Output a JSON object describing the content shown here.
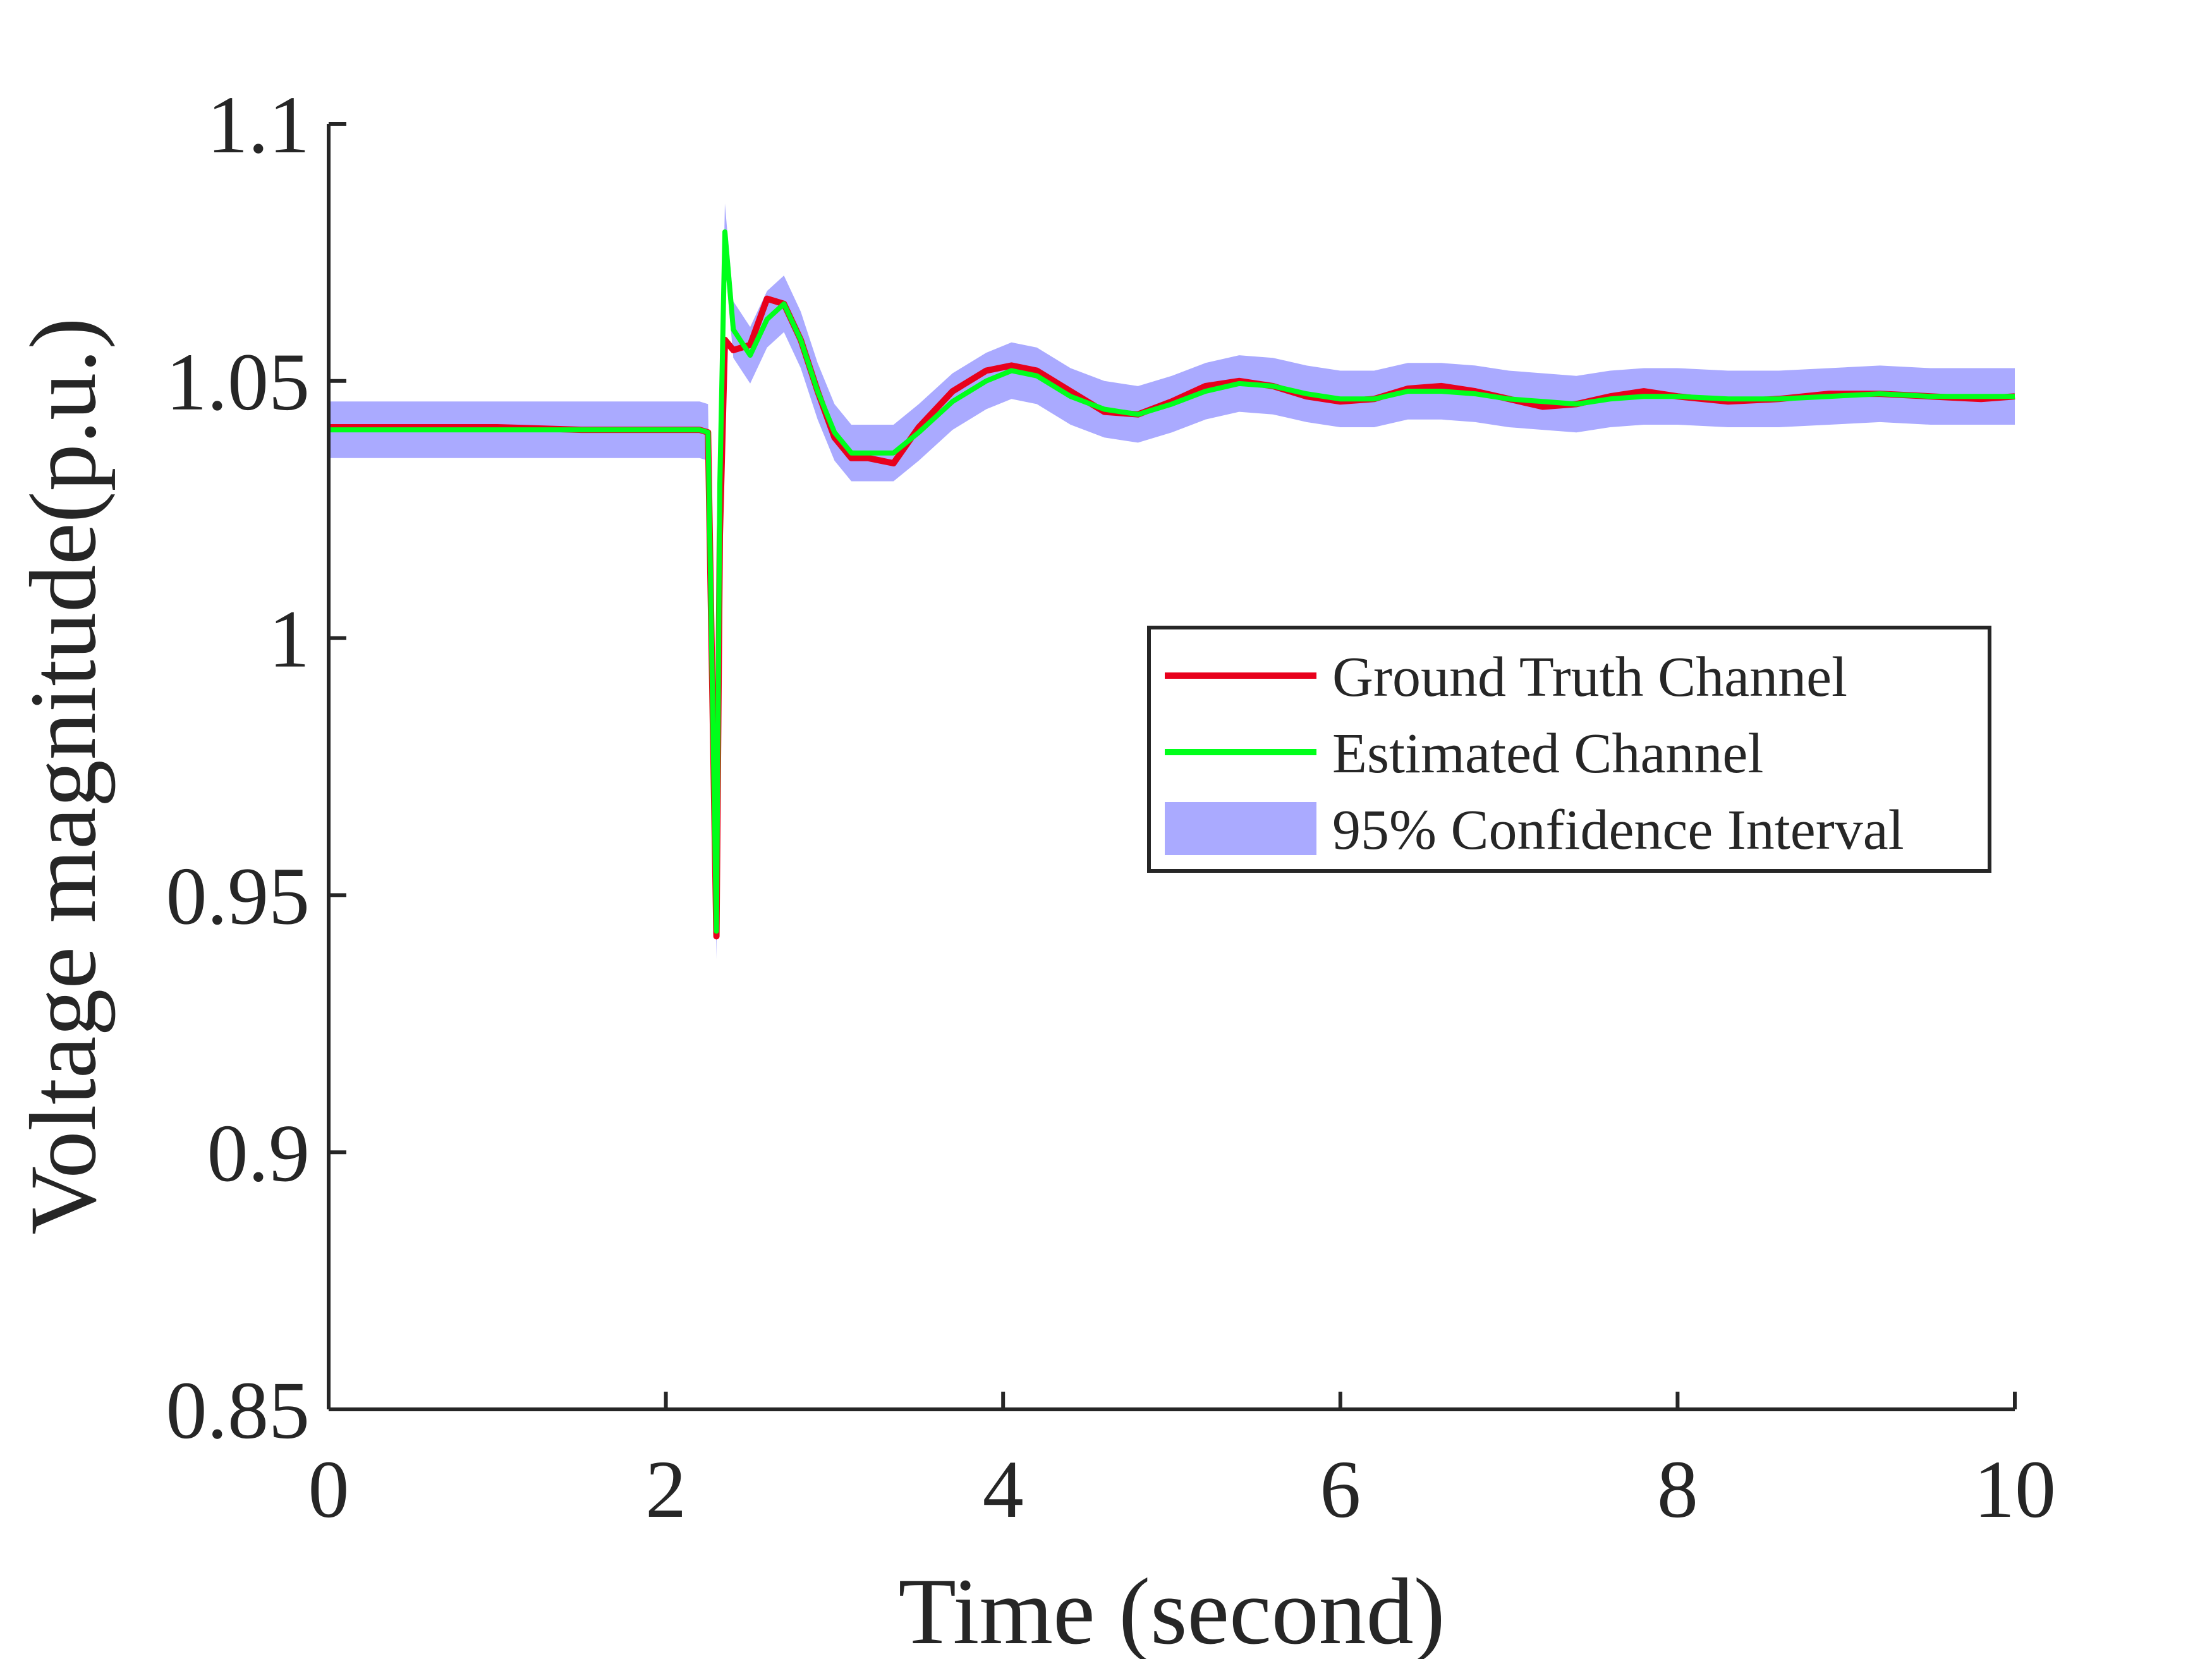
{
  "chart_data": {
    "type": "line",
    "xlabel": "Time (second)",
    "ylabel": "Voltage magnitude(p.u.)",
    "xlim": [
      0,
      10
    ],
    "ylim": [
      0.85,
      1.1
    ],
    "xticks": [
      0,
      2,
      4,
      6,
      8,
      10
    ],
    "xtick_labels": [
      "0",
      "2",
      "4",
      "6",
      "8",
      "10"
    ],
    "yticks": [
      0.85,
      0.9,
      0.95,
      1.0,
      1.05,
      1.1
    ],
    "ytick_labels": [
      "0.85",
      "0.9",
      "0.95",
      "1",
      "1.05",
      "1.1"
    ],
    "grid": false,
    "legend_position": "right",
    "colors": {
      "ground_truth": "#e8001c",
      "estimated": "#00ff1a",
      "confidence": "#aaaaff",
      "axis": "#262626"
    },
    "series": [
      {
        "name": "Ground Truth Channel",
        "x": [
          0,
          0.5,
          1.0,
          1.5,
          2.0,
          2.2,
          2.25,
          2.3,
          2.32,
          2.35,
          2.4,
          2.5,
          2.6,
          2.7,
          2.8,
          2.9,
          3.0,
          3.1,
          3.2,
          3.35,
          3.5,
          3.7,
          3.9,
          4.05,
          4.2,
          4.4,
          4.6,
          4.8,
          5.0,
          5.2,
          5.4,
          5.6,
          5.8,
          6.0,
          6.2,
          6.4,
          6.6,
          6.8,
          7.0,
          7.2,
          7.4,
          7.6,
          7.8,
          8.0,
          8.3,
          8.6,
          8.9,
          9.2,
          9.5,
          9.8,
          10.0
        ],
        "y": [
          1.041,
          1.041,
          1.041,
          1.0405,
          1.0405,
          1.0405,
          1.04,
          0.942,
          1.02,
          1.058,
          1.056,
          1.057,
          1.066,
          1.065,
          1.058,
          1.048,
          1.039,
          1.035,
          1.035,
          1.034,
          1.041,
          1.048,
          1.052,
          1.053,
          1.052,
          1.048,
          1.044,
          1.0435,
          1.046,
          1.049,
          1.05,
          1.049,
          1.047,
          1.046,
          1.0465,
          1.0485,
          1.049,
          1.048,
          1.0465,
          1.045,
          1.0455,
          1.047,
          1.048,
          1.047,
          1.046,
          1.0465,
          1.0475,
          1.0475,
          1.047,
          1.0465,
          1.047
        ]
      },
      {
        "name": "Estimated Channel",
        "x": [
          0,
          0.5,
          1.0,
          1.5,
          2.0,
          2.2,
          2.25,
          2.3,
          2.32,
          2.35,
          2.4,
          2.5,
          2.6,
          2.7,
          2.8,
          2.9,
          3.0,
          3.1,
          3.2,
          3.35,
          3.5,
          3.7,
          3.9,
          4.05,
          4.2,
          4.4,
          4.6,
          4.8,
          5.0,
          5.2,
          5.4,
          5.6,
          5.8,
          6.0,
          6.2,
          6.4,
          6.6,
          6.8,
          7.0,
          7.2,
          7.4,
          7.6,
          7.8,
          8.0,
          8.3,
          8.6,
          8.9,
          9.2,
          9.5,
          9.8,
          10.0
        ],
        "y": [
          1.0405,
          1.0405,
          1.0405,
          1.0405,
          1.0405,
          1.0405,
          1.04,
          0.943,
          1.03,
          1.079,
          1.06,
          1.055,
          1.062,
          1.065,
          1.058,
          1.048,
          1.04,
          1.036,
          1.036,
          1.036,
          1.04,
          1.046,
          1.05,
          1.052,
          1.051,
          1.047,
          1.0445,
          1.0435,
          1.0455,
          1.048,
          1.0495,
          1.049,
          1.0475,
          1.0465,
          1.0465,
          1.048,
          1.048,
          1.0475,
          1.0465,
          1.046,
          1.0455,
          1.0465,
          1.047,
          1.047,
          1.0465,
          1.0465,
          1.047,
          1.0475,
          1.047,
          1.047,
          1.047
        ]
      }
    ],
    "confidence_interval": {
      "name": "95% Confidence Interval",
      "half_width": 0.0055
    }
  }
}
